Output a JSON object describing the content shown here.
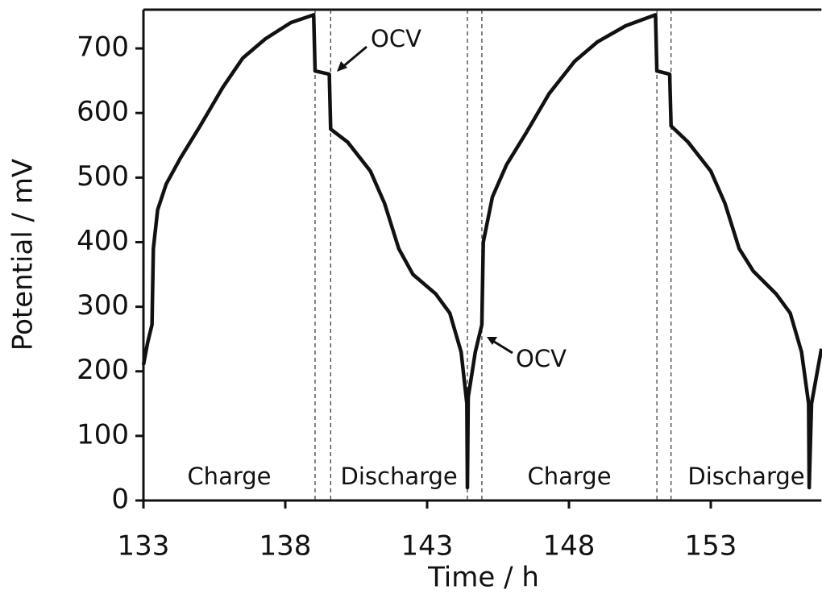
{
  "chart_data": {
    "type": "line",
    "xlabel": "Time / h",
    "ylabel": "Potential / mV",
    "xlim": [
      133,
      156.9
    ],
    "ylim": [
      0,
      760
    ],
    "xticks": [
      133,
      138,
      143,
      148,
      153
    ],
    "yticks": [
      0,
      100,
      200,
      300,
      400,
      500,
      600,
      700
    ],
    "color": "#111111",
    "x": [
      133,
      133.15,
      133.3,
      133.35,
      133.5,
      133.8,
      134.3,
      135,
      135.8,
      136.5,
      137.3,
      138.2,
      139.0,
      139.05,
      139.55,
      139.6,
      140.2,
      141,
      141.5,
      142,
      142.5,
      143.3,
      143.8,
      144.2,
      144.4,
      144.42,
      144.45,
      144.7,
      144.93,
      144.98,
      145.3,
      145.8,
      146.5,
      147.3,
      148.2,
      149,
      150,
      151.05,
      151.1,
      151.55,
      151.6,
      152.2,
      153,
      153.5,
      154,
      154.5,
      155.3,
      155.8,
      156.2,
      156.45,
      156.47,
      156.55,
      156.9
    ],
    "values": [
      210,
      245,
      272,
      390,
      450,
      490,
      530,
      580,
      640,
      685,
      715,
      740,
      752,
      665,
      660,
      575,
      555,
      510,
      460,
      390,
      350,
      320,
      290,
      230,
      150,
      20,
      160,
      230,
      272,
      400,
      470,
      520,
      570,
      630,
      680,
      710,
      735,
      752,
      665,
      660,
      580,
      555,
      510,
      460,
      390,
      355,
      320,
      290,
      230,
      150,
      20,
      150,
      235
    ],
    "phase_boundaries": [
      139.05,
      139.6,
      144.42,
      144.93,
      151.1,
      151.6
    ],
    "regions": [
      "Charge",
      "Discharge",
      "Charge",
      "Discharge"
    ],
    "annotations": [
      "OCV",
      "OCV"
    ]
  }
}
